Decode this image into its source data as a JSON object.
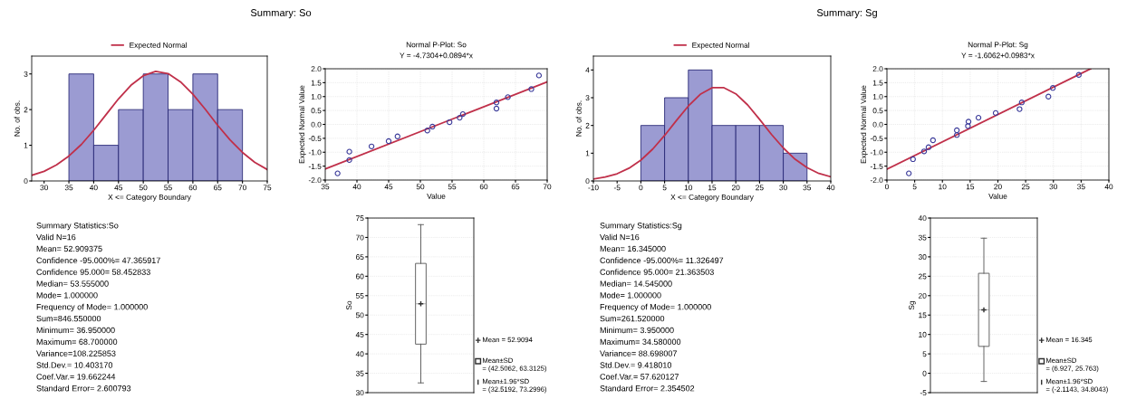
{
  "chart_data": [
    {
      "type": "histogram",
      "title": "Summary: So",
      "xlabel": "X <= Category Boundary",
      "ylabel": "No. of obs.",
      "xlim": [
        27.5,
        75
      ],
      "xticks": [
        30,
        35,
        40,
        45,
        50,
        55,
        60,
        65,
        70,
        75
      ],
      "ylim": [
        0,
        3.5
      ],
      "yticks": [
        0,
        1,
        2,
        3
      ],
      "legend": "top",
      "series": [
        {
          "type": "histogram",
          "color": "#9b9bd2",
          "bins": [
            35,
            40,
            45,
            50,
            55,
            60,
            65,
            70
          ],
          "values": [
            3,
            1,
            2,
            3,
            2,
            3,
            2
          ]
        },
        {
          "type": "line",
          "name": "Expected Normal",
          "color": "#c0304a",
          "x": [
            27.5,
            30,
            32.5,
            35,
            37.5,
            40,
            42.5,
            45,
            47.5,
            50,
            52.5,
            55,
            57.5,
            60,
            62.5,
            65,
            67.5,
            70,
            72.5,
            75
          ],
          "values": [
            0.16,
            0.27,
            0.45,
            0.7,
            1.02,
            1.42,
            1.86,
            2.3,
            2.68,
            2.95,
            3.07,
            3.01,
            2.78,
            2.43,
            2.01,
            1.56,
            1.15,
            0.8,
            0.52,
            0.32
          ]
        }
      ]
    },
    {
      "type": "scatter",
      "title": "Normal P-Plot: So",
      "subtitle": "Y = -4.7304+0.0894*x",
      "xlabel": "Value",
      "ylabel": "Expected Normal Value",
      "xlim": [
        35,
        70
      ],
      "xticks": [
        35,
        40,
        45,
        50,
        55,
        60,
        65,
        70
      ],
      "ylim": [
        -2,
        2
      ],
      "yticks": [
        {
          "value": -2,
          "label": "-2.0"
        },
        {
          "value": -1.5,
          "label": "-1.5"
        },
        {
          "value": -1,
          "label": "-1.0"
        },
        {
          "value": -0.5,
          "label": "-0.5"
        },
        {
          "value": 0,
          "label": "0.0"
        },
        {
          "value": 0.5,
          "label": "0.5"
        },
        {
          "value": 1,
          "label": "1.0"
        },
        {
          "value": 1.5,
          "label": "1.5"
        },
        {
          "value": 2,
          "label": "2.0"
        }
      ],
      "grid": true,
      "series": [
        {
          "type": "scatter",
          "color": "#3a3a9a",
          "marker": "circle",
          "x": [
            36.95,
            38.8,
            38.8,
            42.3,
            45.0,
            46.4,
            51.1,
            51.9,
            54.6,
            56.2,
            56.7,
            62.0,
            62.0,
            63.8,
            67.5,
            68.7
          ],
          "values": [
            -1.76,
            -0.98,
            -1.28,
            -0.79,
            -0.6,
            -0.43,
            -0.22,
            -0.08,
            0.08,
            0.24,
            0.37,
            0.57,
            0.79,
            0.98,
            1.27,
            1.76
          ]
        },
        {
          "type": "line",
          "color": "#c0304a",
          "x": [
            35,
            70
          ],
          "values": [
            -1.6,
            1.53
          ]
        }
      ]
    },
    {
      "type": "other",
      "annotations": [
        "Summary Statistics:So",
        "Valid N=16",
        "Mean= 52.909375",
        "Confidence -95.000%= 47.365917",
        "Confidence 95.000= 58.452833",
        "Median= 53.555000",
        "Mode= 1.000000",
        "Frequency of Mode= 1.000000",
        "Sum=846.550000",
        "Minimum= 36.950000",
        "Maximum= 68.700000",
        "Variance=108.225853",
        "Std.Dev.= 10.403170",
        "Coef.Var.= 19.662244",
        "Standard Error= 2.600793"
      ]
    },
    {
      "type": "box",
      "ylabel": "So",
      "categories": [
        null
      ],
      "ylim": [
        30,
        75
      ],
      "yticks": [
        30,
        35,
        40,
        45,
        50,
        55,
        60,
        65,
        70,
        75
      ],
      "grid": "y",
      "tick_labels": "y",
      "boxes": [
        {
          "low": 32.5192,
          "q1": 42.5062,
          "median": 52.9094,
          "q3": 63.3125,
          "high": 73.2996,
          "mean": 52.9094
        }
      ],
      "annotations": [
        "Mean = 52.9094",
        "Mean±SD\n= (42.5062, 63.3125)",
        "Mean±1.96*SD\n= (32.5192, 73.2996)"
      ]
    },
    {
      "type": "histogram",
      "title": "Summary: Sg",
      "xlabel": "X <= Category Boundary",
      "ylabel": "No. of obs.",
      "xlim": [
        -10,
        40
      ],
      "xticks": [
        -10,
        -5,
        0,
        5,
        10,
        15,
        20,
        25,
        30,
        35,
        40
      ],
      "ylim": [
        0,
        4.5
      ],
      "yticks": [
        0,
        1,
        2,
        3,
        4
      ],
      "legend": "top",
      "series": [
        {
          "type": "histogram",
          "color": "#9b9bd2",
          "bins": [
            0,
            5,
            10,
            15,
            20,
            25,
            30,
            35
          ],
          "values": [
            2,
            3,
            4,
            2,
            2,
            2,
            1
          ]
        },
        {
          "type": "line",
          "name": "Expected Normal",
          "color": "#c0304a",
          "x": [
            -10,
            -7.5,
            -5,
            -2.5,
            0,
            2.5,
            5,
            7.5,
            10,
            12.5,
            15,
            17.5,
            20,
            22.5,
            25,
            27.5,
            30,
            32.5,
            35,
            37.5,
            40
          ],
          "values": [
            0.07,
            0.14,
            0.26,
            0.46,
            0.75,
            1.15,
            1.64,
            2.18,
            2.7,
            3.12,
            3.36,
            3.36,
            3.14,
            2.74,
            2.22,
            1.68,
            1.19,
            0.78,
            0.48,
            0.27,
            0.15
          ]
        }
      ]
    },
    {
      "type": "scatter",
      "title": "Normal P-Plot: Sg",
      "subtitle": "Y = -1.6062+0.0983*x",
      "xlabel": "Value",
      "ylabel": "Expected Normal Value",
      "xlim": [
        0,
        40
      ],
      "xticks": [
        0,
        5,
        10,
        15,
        20,
        25,
        30,
        35,
        40
      ],
      "ylim": [
        -2,
        2
      ],
      "yticks": [
        {
          "value": -2,
          "label": "-2.0"
        },
        {
          "value": -1.5,
          "label": "-1.5"
        },
        {
          "value": -1,
          "label": "-1.0"
        },
        {
          "value": -0.5,
          "label": "-0.5"
        },
        {
          "value": 0,
          "label": "0.0"
        },
        {
          "value": 0.5,
          "label": "0.5"
        },
        {
          "value": 1,
          "label": "1.0"
        },
        {
          "value": 1.5,
          "label": "1.5"
        },
        {
          "value": 2,
          "label": "2.0"
        }
      ],
      "grid": true,
      "series": [
        {
          "type": "scatter",
          "color": "#3a3a9a",
          "marker": "circle",
          "x": [
            3.95,
            4.7,
            6.7,
            7.5,
            8.3,
            12.6,
            12.6,
            14.6,
            14.7,
            16.5,
            19.6,
            23.9,
            24.3,
            29.1,
            29.9,
            34.58
          ],
          "values": [
            -1.76,
            -1.25,
            -0.97,
            -0.82,
            -0.57,
            -0.21,
            -0.38,
            -0.06,
            0.1,
            0.24,
            0.41,
            0.55,
            0.79,
            1.0,
            1.31,
            1.78
          ]
        },
        {
          "type": "line",
          "color": "#c0304a",
          "x": [
            0,
            36.7
          ],
          "values": [
            -1.61,
            2.0
          ]
        }
      ]
    },
    {
      "type": "other",
      "annotations": [
        "Summary Statistics:Sg",
        "Valid N=16",
        "Mean= 16.345000",
        "Confidence -95.000%= 11.326497",
        "Confidence 95.000= 21.363503",
        "Median= 14.545000",
        "Mode= 1.000000",
        "Frequency of Mode= 1.000000",
        "Sum=261.520000",
        "Minimum= 3.950000",
        "Maximum= 34.580000",
        "Variance= 88.698007",
        "Std.Dev.= 9.418010",
        "Coef.Var.= 57.620127",
        "Standard Error= 2.354502"
      ]
    },
    {
      "type": "box",
      "ylabel": "Sg",
      "categories": [
        null
      ],
      "ylim": [
        -5,
        40
      ],
      "yticks": [
        -5,
        0,
        5,
        10,
        15,
        20,
        25,
        30,
        35,
        40
      ],
      "grid": "y",
      "tick_labels": "y",
      "boxes": [
        {
          "low": -2.1143,
          "q1": 6.927,
          "median": 16.345,
          "q3": 25.763,
          "high": 34.8043,
          "mean": 16.345
        }
      ],
      "annotations": [
        "Mean = 16.345",
        "Mean±SD\n= (6.927, 25.763)",
        "Mean±1.96*SD\n= (-2.1143, 34.8043)"
      ]
    }
  ]
}
